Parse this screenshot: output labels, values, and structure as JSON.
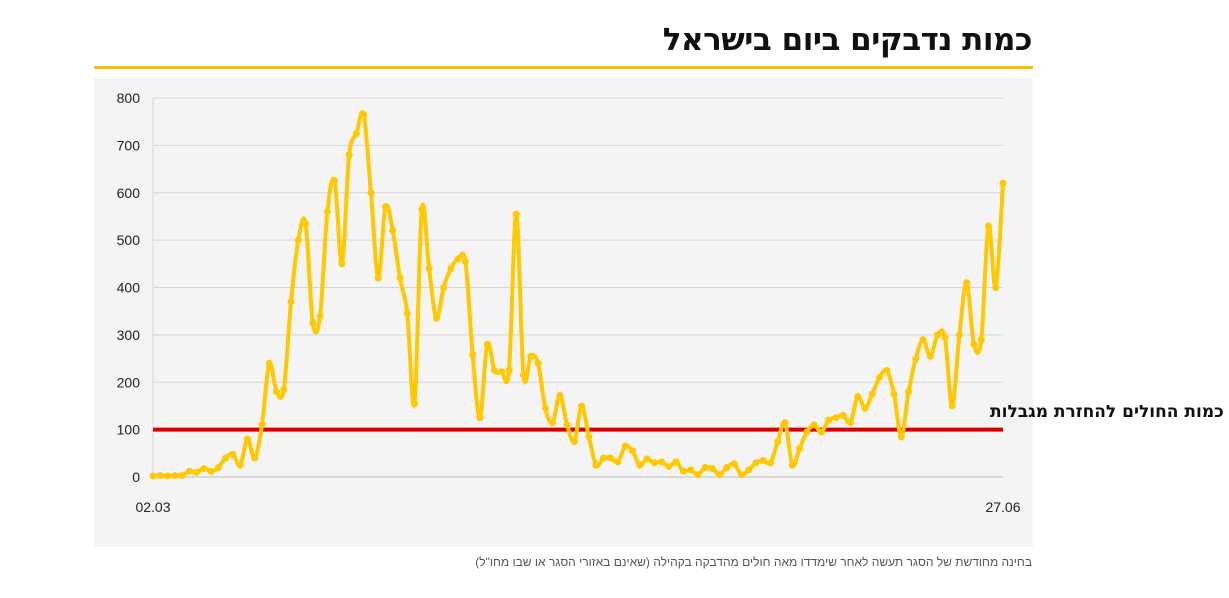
{
  "title": "כמות נדבקים ביום בישראל",
  "footnote": "בחינה מחודשת של הסגר תעשה לאחר שימדדו מאה חולים מהדבקה בקהילה (שאינם באזורי הסגר או שבו מחו\"ל)",
  "colors": {
    "line": "#ffc800",
    "threshold": "#d90000",
    "rule": "#f5c000",
    "panel": "#f4f4f4"
  },
  "chart_data": {
    "type": "line",
    "title": "כמות נדבקים ביום בישראל",
    "x_start_label": "02.03",
    "x_end_label": "27.06",
    "x_tick_labels": [
      "02.03",
      "27.06"
    ],
    "y_ticks": [
      0,
      100,
      200,
      300,
      400,
      500,
      600,
      700,
      800
    ],
    "ylim": [
      0,
      800
    ],
    "grid": true,
    "threshold": {
      "value": 100,
      "label": "100 - כמות החולים להחזרת מגבלות"
    },
    "values": [
      2,
      3,
      2,
      3,
      3,
      12,
      10,
      18,
      12,
      20,
      40,
      48,
      25,
      80,
      40,
      110,
      240,
      180,
      185,
      370,
      500,
      535,
      325,
      340,
      560,
      625,
      450,
      680,
      725,
      765,
      600,
      420,
      570,
      520,
      420,
      345,
      155,
      565,
      440,
      335,
      400,
      440,
      460,
      455,
      258,
      125,
      280,
      225,
      222,
      225,
      555,
      215,
      255,
      240,
      145,
      115,
      172,
      110,
      75,
      150,
      85,
      25,
      40,
      40,
      32,
      65,
      55,
      25,
      38,
      30,
      32,
      22,
      32,
      12,
      15,
      5,
      20,
      18,
      5,
      20,
      28,
      5,
      15,
      30,
      35,
      30,
      75,
      115,
      25,
      60,
      95,
      110,
      95,
      120,
      125,
      130,
      115,
      170,
      145,
      175,
      210,
      225,
      175,
      85,
      180,
      250,
      290,
      255,
      300,
      295,
      150,
      300,
      410,
      280,
      290,
      530,
      400,
      620
    ]
  }
}
